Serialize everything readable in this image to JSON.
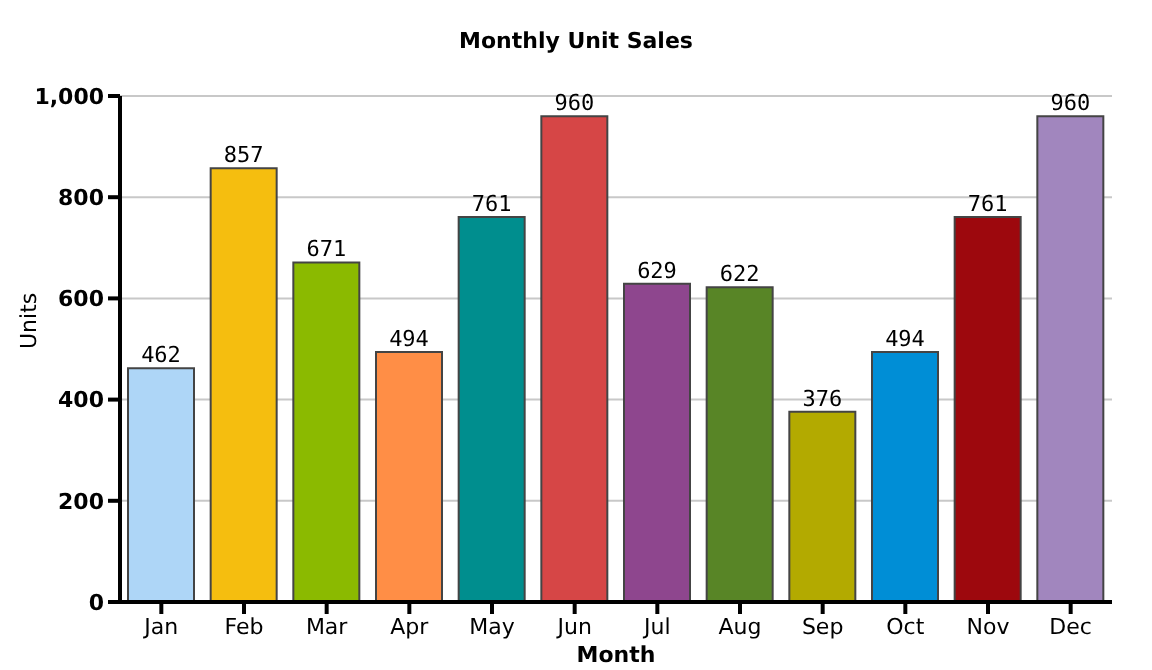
{
  "chart_data": {
    "type": "bar",
    "title": "Monthly Unit Sales",
    "xlabel": "Month",
    "ylabel": "Units",
    "categories": [
      "Jan",
      "Feb",
      "Mar",
      "Apr",
      "May",
      "Jun",
      "Jul",
      "Aug",
      "Sep",
      "Oct",
      "Nov",
      "Dec"
    ],
    "values": [
      462,
      857,
      671,
      494,
      761,
      960,
      629,
      622,
      376,
      494,
      761,
      960
    ],
    "colors": [
      "#aed6f7",
      "#f5be0f",
      "#8bba00",
      "#ff8e46",
      "#008e8e",
      "#d64646",
      "#8e468e",
      "#588526",
      "#b3aa00",
      "#008ed6",
      "#9d080d",
      "#a186be"
    ],
    "ylim": [
      0,
      1000
    ],
    "yticks": [
      0,
      200,
      400,
      600,
      800,
      {
        "value": 1000,
        "label": "1,000"
      }
    ],
    "grid": "y",
    "data_labels": true
  }
}
